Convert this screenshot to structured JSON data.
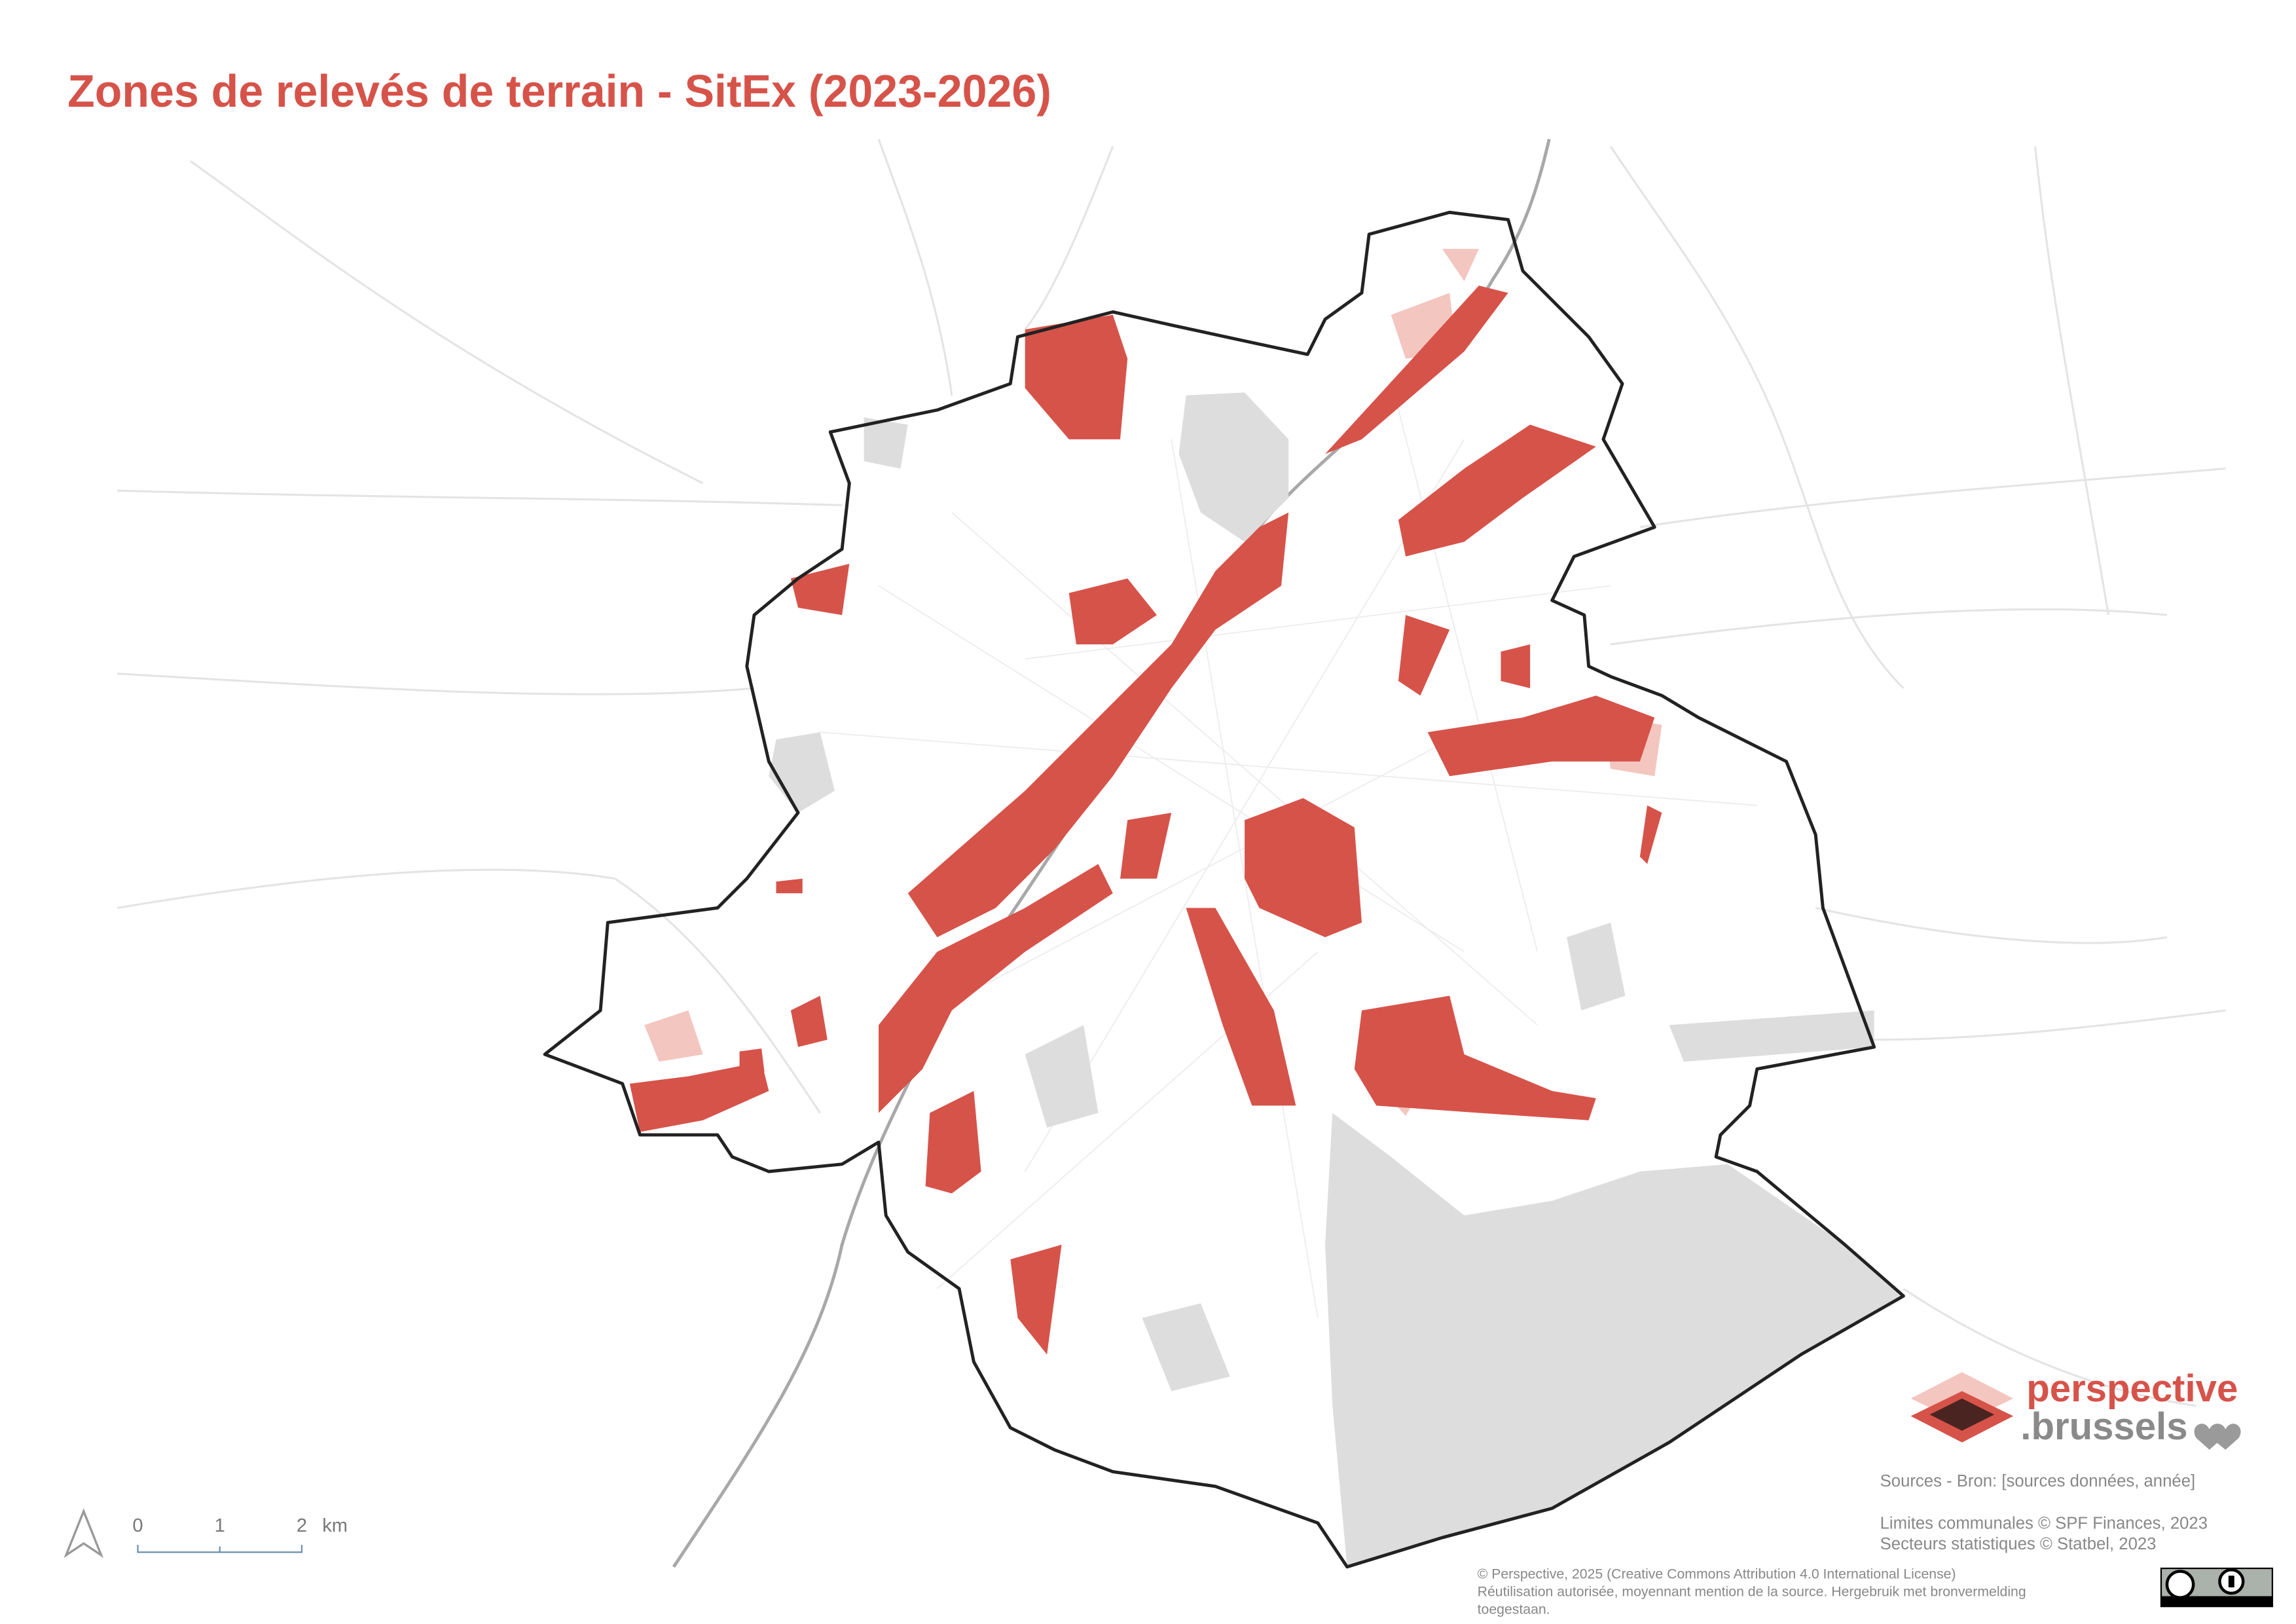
{
  "title": "Zones de relevés de terrain - SitEx (2023-2026)",
  "logo": {
    "line1": "perspective",
    "line2": ".brussels"
  },
  "sources": [
    "Sources - Bron: [sources données, année]",
    "Limites communales © SPF Finances, 2023",
    "Secteurs statistiques © Statbel, 2023"
  ],
  "license": [
    "© Perspective, 2025 (Creative Commons Attribution 4.0 International License)",
    "Réutilisation autorisée, moyennant mention de la source. Hergebruik met bronvermelding",
    "toegestaan."
  ],
  "scale_bar": {
    "labels": [
      "0",
      "1",
      "2"
    ],
    "unit": "km"
  }
}
